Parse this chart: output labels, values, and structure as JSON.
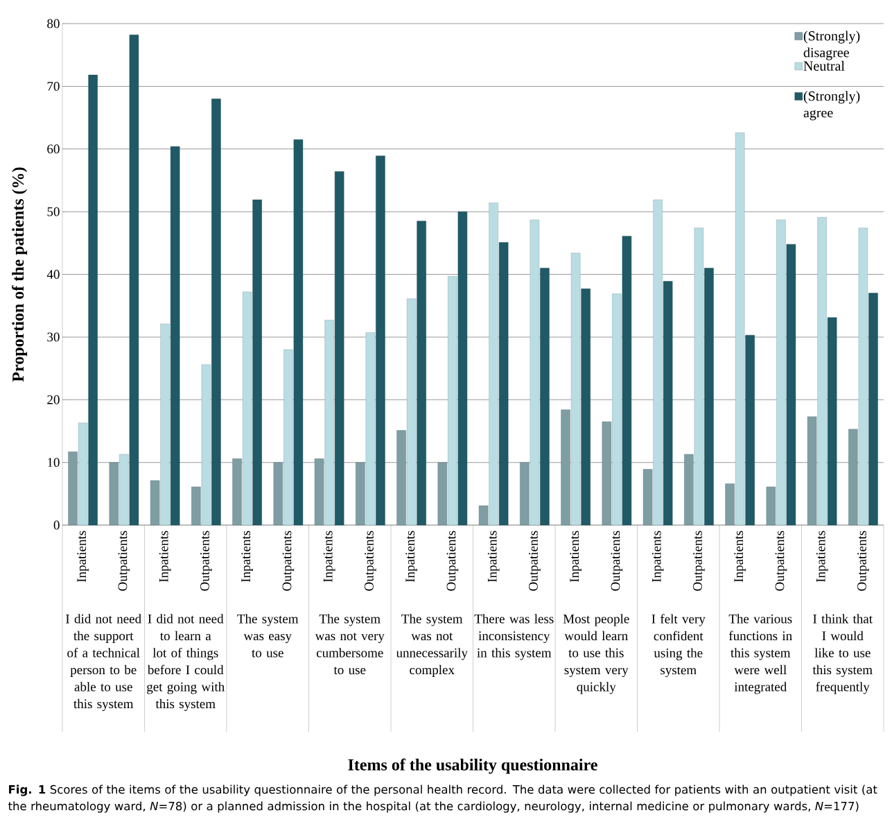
{
  "chart_data": {
    "type": "bar",
    "ylabel": "Proportion of the patients (%)",
    "categories": [
      "Inpatients",
      "Outpatients",
      "Inpatients",
      "Outpatients",
      "Inpatients",
      "Outpatients",
      "Inpatients",
      "Outpatients",
      "Inpatients",
      "Outpatients",
      "Inpatients",
      "Outpatients",
      "Inpatients",
      "Outpatients",
      "Inpatients",
      "Outpatients",
      "Inpatients",
      "Outpatients",
      "Inpatients",
      "Outpatients"
    ],
    "series": [
      {
        "name": "(Strongly) disagree",
        "color": "#7f9ea4",
        "values": [
          11.7,
          10,
          7.1,
          6.1,
          10.6,
          10,
          10.6,
          10,
          15.1,
          10,
          3.1,
          10,
          18.4,
          16.5,
          8.9,
          11.3,
          6.6,
          6.1,
          17.3,
          15.3
        ]
      },
      {
        "name": "Neutral",
        "color": "#b9dde3",
        "values": [
          16.3,
          11.3,
          32.1,
          25.6,
          37.2,
          28,
          32.7,
          30.7,
          36.1,
          39.7,
          51.4,
          48.7,
          43.4,
          36.9,
          51.9,
          47.4,
          62.6,
          48.7,
          49.1,
          47.4
        ]
      },
      {
        "name": "(Strongly) agree",
        "color": "#1f5a66",
        "values": [
          71.8,
          78.2,
          60.4,
          68,
          51.9,
          61.5,
          56.4,
          58.9,
          48.5,
          50,
          45.1,
          41,
          37.7,
          46.1,
          38.9,
          41,
          30.3,
          44.8,
          33.1,
          37
        ]
      }
    ],
    "ylim": [
      0,
      80
    ],
    "yticks": [
      0,
      10,
      20,
      30,
      40,
      50,
      60,
      70,
      80
    ],
    "grid": "y",
    "legend": "top right",
    "annotations": [
      "I did not need the support of a technical person to be able to use this system",
      "I did not need to learn a lot of things before I could get going with this system",
      "The system was easy to use",
      "The system was not very cumbersome to use",
      "The system was not unnecessarily complex",
      "There was less inconsistency in this system",
      "Most people would learn to use this system very quickly",
      "I felt very confident using the system",
      "The various functions in this system were well integrated",
      "I think that I would like to use this system frequently",
      "Items of the usability questionnaire",
      "**Fig. 1** Scores of the items of the usability questionnaire of the personal health record. The data were collected for patients with an outpatient visit (at the rheumatology ward, *N*=78) or a planned admission in the hospital (at the cardiology, neurology, internal medicine or pulmonary wards, *N*=177)"
    ]
  }
}
